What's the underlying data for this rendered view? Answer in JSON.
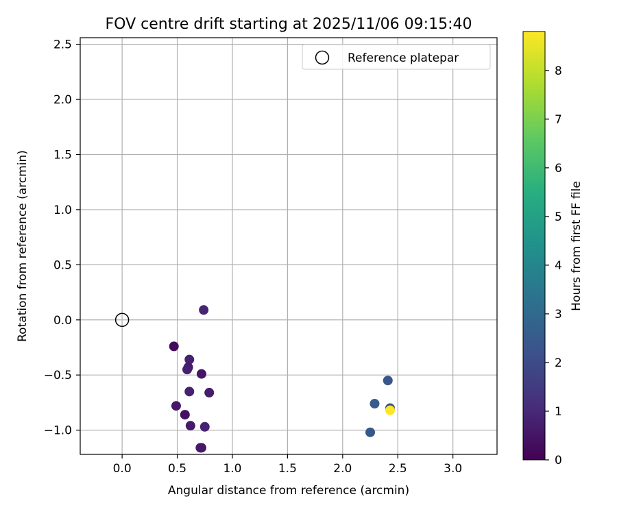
{
  "chart_data": {
    "type": "scatter",
    "title": "FOV centre drift starting at 2025/11/06 09:15:40",
    "xlabel": "Angular distance from reference (arcmin)",
    "ylabel": "Rotation from reference (arcmin)",
    "xlim": [
      -0.38,
      3.4
    ],
    "ylim": [
      -1.22,
      2.56
    ],
    "xticks": [
      0.0,
      0.5,
      1.0,
      1.5,
      2.0,
      2.5,
      3.0
    ],
    "xtick_labels": [
      "0.0",
      "0.5",
      "1.0",
      "1.5",
      "2.0",
      "2.5",
      "3.0"
    ],
    "yticks": [
      -1.0,
      -0.5,
      0.0,
      0.5,
      1.0,
      1.5,
      2.0,
      2.5
    ],
    "ytick_labels": [
      "−1.0",
      "−0.5",
      "0.0",
      "0.5",
      "1.0",
      "1.5",
      "2.0",
      "2.5"
    ],
    "grid": true,
    "legend": {
      "position": "top-right",
      "entries": [
        "Reference platepar"
      ]
    },
    "reference_point": {
      "label": "Reference platepar",
      "x": 0.0,
      "y": 0.0
    },
    "colorbar": {
      "label": "Hours from first FF file",
      "range": [
        0,
        8.8
      ],
      "ticks": [
        0,
        1,
        2,
        3,
        4,
        5,
        6,
        7,
        8
      ],
      "tick_labels": [
        "0",
        "1",
        "2",
        "3",
        "4",
        "5",
        "6",
        "7",
        "8"
      ],
      "colormap": "viridis"
    },
    "points": [
      {
        "x": 0.47,
        "y": -0.24,
        "hours": 0.2
      },
      {
        "x": 0.74,
        "y": 0.09,
        "hours": 0.9
      },
      {
        "x": 0.61,
        "y": -0.36,
        "hours": 0.8
      },
      {
        "x": 0.6,
        "y": -0.43,
        "hours": 0.7
      },
      {
        "x": 0.59,
        "y": -0.45,
        "hours": 0.75
      },
      {
        "x": 0.72,
        "y": -0.49,
        "hours": 0.5
      },
      {
        "x": 0.61,
        "y": -0.65,
        "hours": 0.8
      },
      {
        "x": 0.79,
        "y": -0.66,
        "hours": 0.7
      },
      {
        "x": 0.49,
        "y": -0.78,
        "hours": 0.6
      },
      {
        "x": 0.57,
        "y": -0.86,
        "hours": 0.4
      },
      {
        "x": 0.62,
        "y": -0.96,
        "hours": 0.65
      },
      {
        "x": 0.75,
        "y": -0.97,
        "hours": 0.85
      },
      {
        "x": 0.72,
        "y": -1.16,
        "hours": 0.55
      },
      {
        "x": 0.71,
        "y": -1.16,
        "hours": 0.6
      },
      {
        "x": 2.41,
        "y": -0.55,
        "hours": 2.3
      },
      {
        "x": 2.29,
        "y": -0.76,
        "hours": 2.5
      },
      {
        "x": 2.43,
        "y": -0.8,
        "hours": 2.2
      },
      {
        "x": 2.25,
        "y": -1.02,
        "hours": 2.4
      },
      {
        "x": 2.43,
        "y": -0.82,
        "hours": 8.8
      }
    ]
  }
}
